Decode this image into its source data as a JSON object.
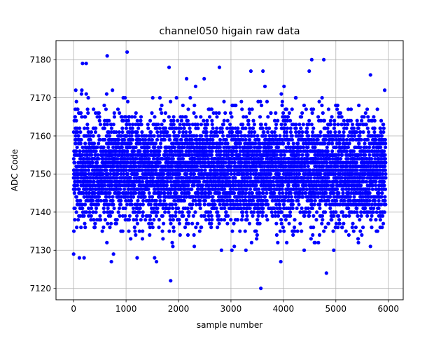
{
  "chart_data": {
    "type": "scatter",
    "title": "channel050 higain raw data",
    "xlabel": "sample number",
    "ylabel": "ADC Code",
    "xlim": [
      -336,
      6284
    ],
    "ylim": [
      7117,
      7185
    ],
    "x_ticks": [
      0,
      1000,
      2000,
      3000,
      4000,
      5000,
      6000
    ],
    "y_ticks": [
      7120,
      7130,
      7140,
      7150,
      7160,
      7170,
      7180
    ],
    "grid": true,
    "legend": "none",
    "marker_color": "#0000ff",
    "series": [
      {
        "x_range": [
          0,
          5950
        ],
        "n_points": 6000,
        "y_range": [
          7120,
          7182
        ],
        "y_mean": 7151,
        "y_std": 6.8,
        "outliers": [
          {
            "x": 0,
            "y": 7129
          },
          {
            "x": 110,
            "y": 7128
          },
          {
            "x": 200,
            "y": 7128
          },
          {
            "x": 170,
            "y": 7179
          },
          {
            "x": 240,
            "y": 7179
          },
          {
            "x": 640,
            "y": 7181
          },
          {
            "x": 1020,
            "y": 7182
          },
          {
            "x": 720,
            "y": 7127
          },
          {
            "x": 760,
            "y": 7129
          },
          {
            "x": 1580,
            "y": 7127
          },
          {
            "x": 1850,
            "y": 7122
          },
          {
            "x": 1820,
            "y": 7178
          },
          {
            "x": 2780,
            "y": 7178
          },
          {
            "x": 3570,
            "y": 7120
          },
          {
            "x": 3380,
            "y": 7177
          },
          {
            "x": 3610,
            "y": 7177
          },
          {
            "x": 4540,
            "y": 7180
          },
          {
            "x": 4770,
            "y": 7180
          },
          {
            "x": 4820,
            "y": 7124
          },
          {
            "x": 4960,
            "y": 7130
          },
          {
            "x": 3950,
            "y": 7127
          },
          {
            "x": 5660,
            "y": 7176
          },
          {
            "x": 5430,
            "y": 7132
          }
        ]
      }
    ]
  },
  "colors": {
    "points": "#0000ff",
    "grid": "#b0b0b0",
    "axes": "#000000",
    "background": "#ffffff"
  }
}
